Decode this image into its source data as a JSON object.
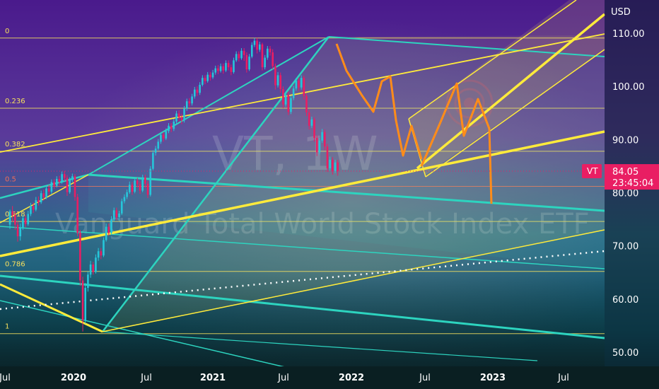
{
  "chart_data": {
    "type": "candlestick",
    "symbol": "VT",
    "interval": "1W",
    "watermark": {
      "symbol": "VT, 1W",
      "name": "Vanguard Total World Stock Index ETF"
    },
    "currency": "USD",
    "price_axis": {
      "ticks": [
        "110.00",
        "100.00",
        "90.00",
        "80.00",
        "70.00",
        "60.00",
        "50.00"
      ],
      "ylim": [
        48,
        118
      ]
    },
    "time_axis": {
      "ticks": [
        "Jul",
        "2020",
        "Jul",
        "2021",
        "Jul",
        "2022",
        "Jul",
        "2023",
        "Jul"
      ]
    },
    "last_price": {
      "symbol": "VT",
      "price": "84.05",
      "countdown": "23:45:04",
      "value": 84.05,
      "color": "#e91e63"
    },
    "fib_levels": [
      {
        "label": "0",
        "value": 109.1,
        "color": "#f6e05e"
      },
      {
        "label": "0.236",
        "value": 95.9,
        "color": "#f6e05e"
      },
      {
        "label": "0.382",
        "value": 87.8,
        "color": "#f6e05e"
      },
      {
        "label": "0.5",
        "value": 81.2,
        "color": "#ef6c5a"
      },
      {
        "label": "0.618",
        "value": 74.6,
        "color": "#f6e05e"
      },
      {
        "label": "0.786",
        "value": 65.2,
        "color": "#f6e05e"
      },
      {
        "label": "1",
        "value": 53.5,
        "color": "#f6e05e"
      }
    ],
    "colors": {
      "up": "#26c6da",
      "down": "#e91e63",
      "trend_yellow": "#ffeb3b",
      "trend_teal": "#2dd4bf",
      "projection": "#ff8c1a"
    },
    "candles": [
      [
        74,
        76.5,
        73.2,
        76.8
      ],
      [
        76.5,
        75.8,
        74.5,
        77.5
      ],
      [
        75.8,
        74,
        73,
        76.5
      ],
      [
        74,
        71.8,
        70.8,
        74.6
      ],
      [
        71.8,
        73.4,
        71,
        74.2
      ],
      [
        73.4,
        75.2,
        73,
        75.8
      ],
      [
        75.2,
        74.1,
        73.5,
        75.8
      ],
      [
        74.1,
        76,
        73.8,
        76.6
      ],
      [
        76,
        77.5,
        75.6,
        78.1
      ],
      [
        77.5,
        76.8,
        76.2,
        78.2
      ],
      [
        76.8,
        78.6,
        76.5,
        79.2
      ],
      [
        78.6,
        78.2,
        77.6,
        79.3
      ],
      [
        78.2,
        79.9,
        77.9,
        80.4
      ],
      [
        79.9,
        79.1,
        78.5,
        80.6
      ],
      [
        79.1,
        80.8,
        78.8,
        81.4
      ],
      [
        80.8,
        80.2,
        79.6,
        81.5
      ],
      [
        80.2,
        82,
        79.8,
        82.5
      ],
      [
        82,
        81.3,
        80.7,
        82.6
      ],
      [
        81.3,
        82.6,
        81,
        83.1
      ],
      [
        82.6,
        82,
        81.4,
        83.2
      ],
      [
        82,
        83.5,
        81.7,
        84
      ],
      [
        83.5,
        82.8,
        82.2,
        84.1
      ],
      [
        82.8,
        80.1,
        79.4,
        83.3
      ],
      [
        80.1,
        82.4,
        79.8,
        82.9
      ],
      [
        82.4,
        83.1,
        82,
        83.6
      ],
      [
        83.1,
        79.2,
        78.5,
        83.5
      ],
      [
        79.2,
        72.5,
        71.8,
        79.8
      ],
      [
        72.5,
        63.5,
        62.5,
        73
      ],
      [
        63.5,
        56,
        53.9,
        64.2
      ],
      [
        56,
        62.1,
        55.4,
        63
      ],
      [
        62.1,
        64.6,
        61.4,
        65.2
      ],
      [
        64.6,
        66.5,
        64,
        67.2
      ],
      [
        66.5,
        65.1,
        64.6,
        67
      ],
      [
        65.1,
        67.8,
        64.8,
        68.4
      ],
      [
        67.8,
        69,
        67.2,
        69.6
      ],
      [
        69,
        68.2,
        67.5,
        69.6
      ],
      [
        68.2,
        71.1,
        67.9,
        71.6
      ],
      [
        71.1,
        73.6,
        70.8,
        74.2
      ],
      [
        73.6,
        72.4,
        71.9,
        74.2
      ],
      [
        72.4,
        75,
        72.1,
        75.6
      ],
      [
        75,
        76.7,
        74.6,
        77.2
      ],
      [
        76.7,
        75.4,
        74.9,
        77.2
      ],
      [
        75.4,
        76.1,
        74.8,
        76.6
      ],
      [
        76.1,
        78.4,
        75.8,
        78.9
      ],
      [
        78.4,
        79.2,
        78,
        79.7
      ],
      [
        79.2,
        80.1,
        78.8,
        80.6
      ],
      [
        80.1,
        81.5,
        79.8,
        82.1
      ],
      [
        81.5,
        80.2,
        79.6,
        82
      ],
      [
        80.2,
        82.3,
        79.9,
        82.8
      ],
      [
        82.3,
        81.6,
        81,
        82.8
      ],
      [
        81.6,
        80.4,
        79.8,
        82.1
      ],
      [
        80.4,
        82.9,
        80.1,
        83.4
      ],
      [
        82.9,
        81.7,
        80.9,
        83.4
      ],
      [
        81.7,
        79.6,
        79,
        82.2
      ],
      [
        79.6,
        84.5,
        79.3,
        85
      ],
      [
        84.5,
        87.5,
        84.2,
        88
      ],
      [
        87.5,
        88.3,
        87,
        88.8
      ],
      [
        88.3,
        89.6,
        88,
        90.1
      ],
      [
        89.6,
        90.9,
        89.2,
        91.4
      ],
      [
        90.9,
        90.2,
        89.6,
        91.4
      ],
      [
        90.2,
        91.6,
        89.9,
        92.1
      ],
      [
        91.6,
        92.6,
        91.2,
        93.1
      ],
      [
        92.6,
        92,
        91.4,
        93.1
      ],
      [
        92,
        93.4,
        91.6,
        93.9
      ],
      [
        93.4,
        94.9,
        93,
        95.4
      ],
      [
        94.9,
        94.2,
        93.4,
        95.5
      ],
      [
        94.2,
        93.6,
        92.9,
        94.8
      ],
      [
        93.6,
        95.8,
        93.2,
        96.3
      ],
      [
        95.8,
        97.2,
        95.4,
        97.7
      ],
      [
        97.2,
        96.8,
        96.2,
        97.8
      ],
      [
        96.8,
        98.1,
        96.4,
        98.6
      ],
      [
        98.1,
        99.4,
        97.7,
        99.9
      ],
      [
        99.4,
        98.8,
        98.2,
        100
      ],
      [
        98.8,
        100.3,
        98.4,
        100.8
      ],
      [
        100.3,
        101.6,
        100,
        102.1
      ],
      [
        101.6,
        101,
        100.4,
        102.1
      ],
      [
        101,
        102.2,
        100.7,
        102.7
      ],
      [
        102.2,
        101.7,
        101.1,
        102.7
      ],
      [
        101.7,
        102.6,
        101.4,
        103.1
      ],
      [
        102.6,
        103.4,
        102.2,
        103.9
      ],
      [
        103.4,
        102.9,
        102.3,
        104
      ],
      [
        102.9,
        103.8,
        102.6,
        104.3
      ],
      [
        103.8,
        103,
        102.4,
        104.3
      ],
      [
        103,
        104.4,
        102.7,
        104.9
      ],
      [
        104.4,
        103.6,
        103,
        104.9
      ],
      [
        103.6,
        102.7,
        102.1,
        104.1
      ],
      [
        102.7,
        104.9,
        102.4,
        105.4
      ],
      [
        104.9,
        106.1,
        104.6,
        106.6
      ],
      [
        106.1,
        105.3,
        104.7,
        106.6
      ],
      [
        105.3,
        106.7,
        105,
        107.2
      ],
      [
        106.7,
        105.9,
        104.8,
        107.2
      ],
      [
        105.9,
        103.2,
        102.6,
        106.4
      ],
      [
        103.2,
        105.6,
        102.9,
        106.1
      ],
      [
        105.6,
        107.8,
        105.3,
        108.3
      ],
      [
        107.8,
        108.6,
        107.4,
        109.1
      ],
      [
        108.6,
        106.9,
        106.2,
        109.1
      ],
      [
        106.9,
        107.9,
        106.5,
        108.4
      ],
      [
        107.9,
        103.6,
        103,
        108.2
      ],
      [
        103.6,
        105.4,
        103.2,
        105.9
      ],
      [
        105.4,
        107.1,
        105,
        107.6
      ],
      [
        107.1,
        106.4,
        105.8,
        107.6
      ],
      [
        106.4,
        103.8,
        103.2,
        107
      ],
      [
        103.8,
        100.2,
        99.4,
        104.3
      ],
      [
        100.2,
        102.1,
        99.8,
        102.7
      ],
      [
        102.1,
        99.5,
        98.8,
        102.6
      ],
      [
        99.5,
        96.6,
        95.9,
        100
      ],
      [
        96.6,
        98.4,
        96.2,
        99
      ],
      [
        98.4,
        95.2,
        94.6,
        99
      ],
      [
        95.2,
        97.8,
        94.8,
        98.3
      ],
      [
        97.8,
        99.6,
        97.4,
        100.1
      ],
      [
        99.6,
        101.1,
        99.2,
        101.6
      ],
      [
        101.1,
        99.8,
        99.2,
        101.6
      ],
      [
        99.8,
        101.6,
        99.4,
        102.1
      ],
      [
        101.6,
        98.2,
        97.5,
        102
      ],
      [
        98.2,
        95.1,
        94.4,
        98.7
      ],
      [
        95.1,
        92.6,
        91.9,
        95.6
      ],
      [
        92.6,
        93.8,
        92.2,
        94.3
      ],
      [
        93.8,
        90.3,
        89.6,
        94.2
      ],
      [
        90.3,
        87.6,
        86.9,
        90.8
      ],
      [
        87.6,
        89.8,
        87.2,
        90.3
      ],
      [
        89.8,
        91.4,
        89.4,
        92
      ],
      [
        91.4,
        88.7,
        88,
        91.9
      ],
      [
        88.7,
        84.6,
        83.9,
        89.2
      ],
      [
        84.6,
        86.2,
        84.2,
        86.8
      ],
      [
        86.2,
        84.1,
        83.4,
        86.7
      ],
      [
        84.1,
        85.7,
        83.7,
        86.2
      ],
      [
        85.7,
        84.05,
        83.2,
        86.2
      ]
    ],
    "start_x": 14,
    "spacing": 3.68
  },
  "icons": {
    "watermark": "logo-watermark"
  }
}
